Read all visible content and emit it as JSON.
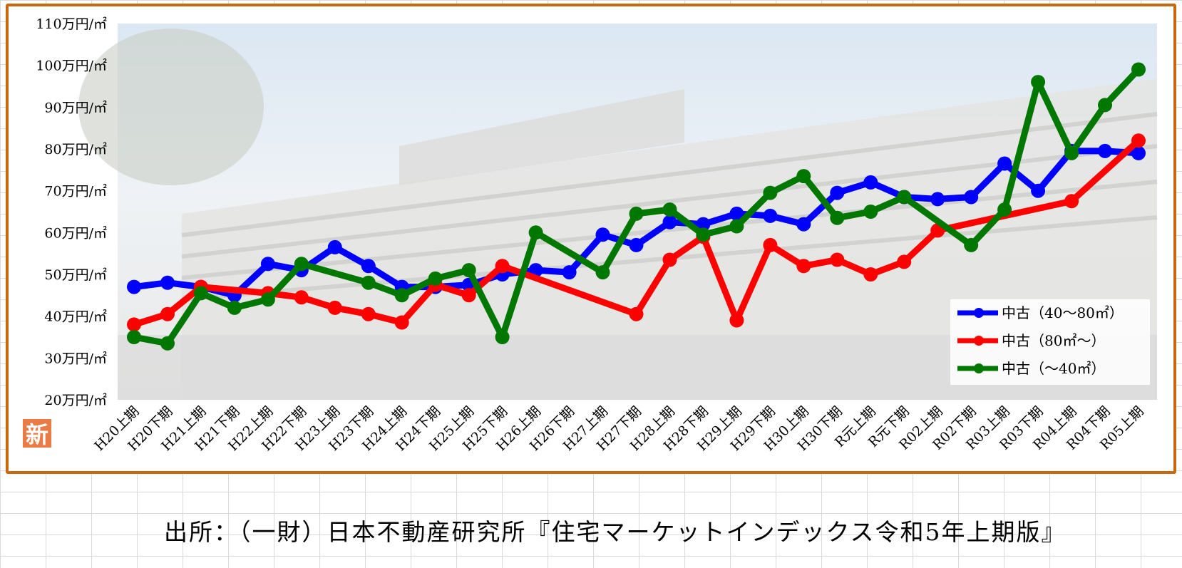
{
  "chart_data": {
    "type": "line",
    "title": "",
    "xlabel": "",
    "ylabel": "",
    "ylim": [
      20,
      110
    ],
    "yticks": [
      {
        "value": 110,
        "label": "110万円/㎡"
      },
      {
        "value": 100,
        "label": "100万円/㎡"
      },
      {
        "value": 90,
        "label": "90万円/㎡"
      },
      {
        "value": 80,
        "label": "80万円/㎡"
      },
      {
        "value": 70,
        "label": "70万円/㎡"
      },
      {
        "value": 60,
        "label": "60万円/㎡"
      },
      {
        "value": 50,
        "label": "50万円/㎡"
      },
      {
        "value": 40,
        "label": "40万円/㎡"
      },
      {
        "value": 30,
        "label": "30万円/㎡"
      },
      {
        "value": 20,
        "label": "20万円/㎡"
      }
    ],
    "categories": [
      "H20上期",
      "H20下期",
      "H21上期",
      "H21下期",
      "H22上期",
      "H22下期",
      "H23上期",
      "H23下期",
      "H24上期",
      "H24下期",
      "H25上期",
      "H25下期",
      "H26上期",
      "H26下期",
      "H27上期",
      "H27下期",
      "H28上期",
      "H28下期",
      "H29上期",
      "H29下期",
      "H30上期",
      "H30下期",
      "R元上期",
      "R元下期",
      "R02上期",
      "R02下期",
      "R03上期",
      "R03下期",
      "R04上期",
      "R04下期",
      "R05上期"
    ],
    "series": [
      {
        "name": "中古（40～80㎡）",
        "color": "#0000ff",
        "points": [
          [
            0,
            47
          ],
          [
            1,
            48
          ],
          [
            2,
            47
          ],
          [
            3,
            45
          ],
          [
            4,
            52.5
          ],
          [
            5,
            51
          ],
          [
            6,
            56.5
          ],
          [
            7,
            52
          ],
          [
            8,
            47
          ],
          [
            9,
            47
          ],
          [
            10,
            47.5
          ],
          [
            11,
            50
          ],
          [
            12,
            51
          ],
          [
            13,
            50.5
          ],
          [
            14,
            59.5
          ],
          [
            15,
            57
          ],
          [
            16,
            62.5
          ],
          [
            17,
            62
          ],
          [
            18,
            64.5
          ],
          [
            19,
            64
          ],
          [
            20,
            62
          ],
          [
            21,
            69.5
          ],
          [
            22,
            72
          ],
          [
            23,
            68.5
          ],
          [
            24,
            68
          ],
          [
            25,
            68.5
          ],
          [
            26,
            76.5
          ],
          [
            27,
            70
          ],
          [
            28,
            79.5
          ],
          [
            29,
            79.5
          ],
          [
            30,
            79
          ]
        ]
      },
      {
        "name": "中古（80㎡～）",
        "color": "#ff0000",
        "points": [
          [
            0,
            38
          ],
          [
            1,
            40.5
          ],
          [
            2,
            47
          ],
          [
            4,
            45.5
          ],
          [
            5,
            44.5
          ],
          [
            6,
            42
          ],
          [
            7,
            40.5
          ],
          [
            8,
            38.5
          ],
          [
            9,
            47.5
          ],
          [
            10,
            45
          ],
          [
            11,
            52
          ],
          [
            15,
            40.5
          ],
          [
            16,
            53.5
          ],
          [
            17,
            59
          ],
          [
            18,
            39
          ],
          [
            19,
            57
          ],
          [
            20,
            52
          ],
          [
            21,
            53.5
          ],
          [
            22,
            50
          ],
          [
            23,
            53
          ],
          [
            24,
            60.5
          ],
          [
            28,
            67.5
          ],
          [
            30,
            82
          ]
        ]
      },
      {
        "name": "中古（～40㎡）",
        "color": "#007800",
        "points": [
          [
            0,
            35
          ],
          [
            1,
            33.5
          ],
          [
            2,
            45.5
          ],
          [
            3,
            42
          ],
          [
            4,
            44
          ],
          [
            5,
            52.5
          ],
          [
            7,
            48
          ],
          [
            8,
            45
          ],
          [
            9,
            49
          ],
          [
            10,
            51
          ],
          [
            11,
            35
          ],
          [
            12,
            60
          ],
          [
            14,
            50.5
          ],
          [
            15,
            64.5
          ],
          [
            16,
            65.5
          ],
          [
            17,
            59.5
          ],
          [
            18,
            61.5
          ],
          [
            19,
            69.5
          ],
          [
            20,
            73.5
          ],
          [
            21,
            63.5
          ],
          [
            22,
            65
          ],
          [
            23,
            68.5
          ],
          [
            25,
            57
          ],
          [
            26,
            65.5
          ],
          [
            27,
            96
          ],
          [
            28,
            79
          ],
          [
            29,
            90.5
          ],
          [
            30,
            99
          ]
        ]
      }
    ],
    "legend": "bottom-right",
    "grid": false
  },
  "badge": {
    "label": "新"
  },
  "source_note": "出所：（一財）日本不動産研究所『住宅マーケットインデックス令和5年上期版』"
}
